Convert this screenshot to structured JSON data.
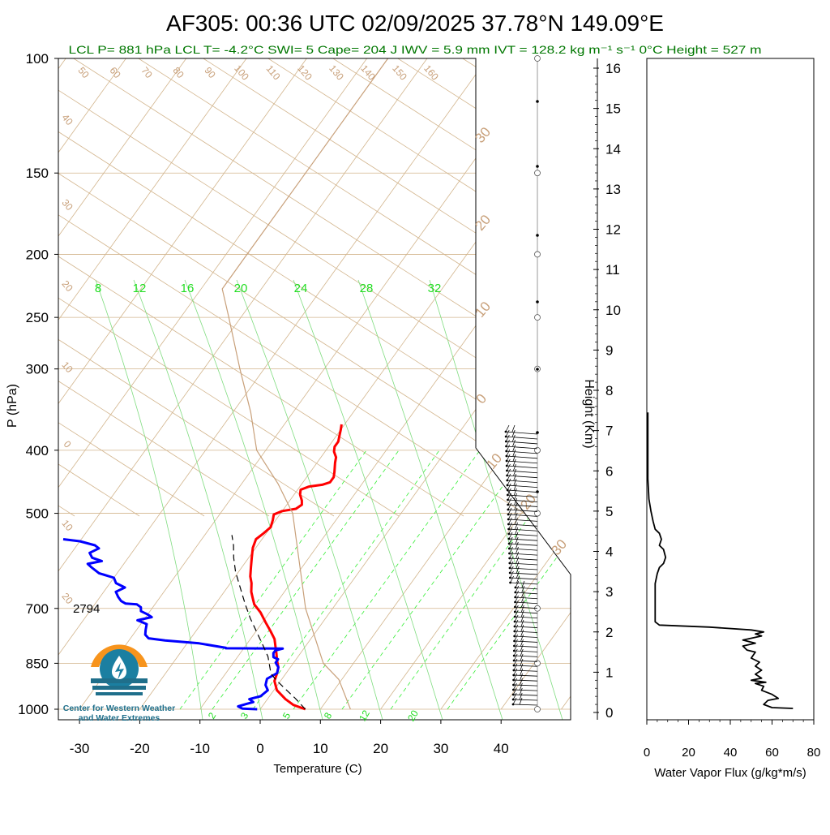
{
  "header": {
    "title": "AF305: 00:36 UTC 02/09/2025  37.78°N 149.09°E",
    "diagnostics": "LCL P= 881 hPa  LCL T= -4.2°C  SWI= 5  Cape= 204 J  IWV = 5.9 mm  IVT = 128.2 kg m⁻¹ s⁻¹  0°C Height = 527 m"
  },
  "logo": {
    "line1": "Center for Western Weather",
    "line2": "and Water Extremes",
    "colors": {
      "orange": "#f7941d",
      "teal": "#1b7fa1",
      "dark": "#1f6f8b"
    }
  },
  "colors": {
    "temperature": "#ff0000",
    "dewpoint": "#0000ff",
    "parcel": "#000000",
    "isotherm": "#d2b48c",
    "mixing_ratio": "#33ee33",
    "moist_adiabat": "#7fdc7f",
    "dry_adiabat": "#d2b48c",
    "std_atmosphere": "#c8a07a",
    "flux": "#000000",
    "green_text": "#007700"
  },
  "chart_data": [
    {
      "type": "line",
      "subtype": "skew-T log-P",
      "xlabel": "Temperature (C)",
      "ylabel": "P (hPa)",
      "xlim": [
        -35,
        50
      ],
      "ylim": [
        1000,
        100
      ],
      "yscale": "log",
      "x_ticks": [
        "-30",
        "-20",
        "-10",
        "0",
        "10",
        "20",
        "30",
        "40"
      ],
      "x_tick_values": [
        -30,
        -20,
        -10,
        0,
        10,
        20,
        30,
        40
      ],
      "y_ticks": [
        "100",
        "150",
        "200",
        "250",
        "300",
        "400",
        "500",
        "700",
        "850",
        "1000"
      ],
      "y_tick_values": [
        100,
        150,
        200,
        250,
        300,
        400,
        500,
        700,
        850,
        1000
      ],
      "right_axis": {
        "label": "Height (Km)",
        "ticks": [
          "0",
          "1",
          "2",
          "3",
          "4",
          "5",
          "6",
          "7",
          "8",
          "9",
          "10",
          "11",
          "12",
          "13",
          "14",
          "15",
          "16"
        ]
      },
      "mixing_ratio_labels": [
        "8",
        "12",
        "16",
        "20",
        "24",
        "28",
        "32"
      ],
      "mixing_ratio_bottom_labels": [
        "2",
        "3",
        "5",
        "8",
        "12",
        "20"
      ],
      "isotherm_labels": [
        "50",
        "60",
        "70",
        "80",
        "90",
        "100",
        "110",
        "120",
        "130",
        "140",
        "150",
        "160"
      ],
      "left_side_labels": [
        "40",
        "30",
        "20",
        "10",
        "0",
        "10",
        "20"
      ],
      "right_side_labels": [
        "30",
        "20",
        "10",
        "0",
        "10",
        "20",
        "30"
      ],
      "annotation": "2794",
      "series": [
        {
          "name": "",
          "role": "temperature",
          "points": [
            [
              7.5,
              1000
            ],
            [
              5,
              985
            ],
            [
              3,
              965
            ],
            [
              0.5,
              935
            ],
            [
              -1,
              905
            ],
            [
              -1.5,
              880
            ],
            [
              -2,
              862
            ],
            [
              -3,
              842
            ],
            [
              -4,
              820
            ],
            [
              -5,
              800
            ],
            [
              -6,
              780
            ],
            [
              -7.5,
              760
            ],
            [
              -9.5,
              735
            ],
            [
              -11.5,
              710
            ],
            [
              -13.5,
              690
            ],
            [
              -14.5,
              675
            ],
            [
              -15.5,
              660
            ],
            [
              -16.5,
              640
            ],
            [
              -17.5,
              625
            ],
            [
              -18.5,
              605
            ],
            [
              -19.5,
              585
            ],
            [
              -20.5,
              565
            ],
            [
              -21,
              548
            ],
            [
              -20.5,
              538
            ],
            [
              -20,
              525
            ],
            [
              -20.5,
              512
            ],
            [
              -21,
              502
            ],
            [
              -20,
              496
            ],
            [
              -18,
              492
            ],
            [
              -17.5,
              485
            ],
            [
              -18,
              478
            ],
            [
              -19,
              468
            ],
            [
              -19.5,
              460
            ],
            [
              -18.5,
              455
            ],
            [
              -16.5,
              452
            ],
            [
              -15.5,
              448
            ],
            [
              -15.5,
              440
            ],
            [
              -16,
              432
            ],
            [
              -16.5,
              425
            ],
            [
              -17,
              418
            ],
            [
              -17.5,
              410
            ],
            [
              -18.5,
              402
            ],
            [
              -19,
              395
            ],
            [
              -19,
              388
            ],
            [
              -19.5,
              380
            ],
            [
              -20,
              372
            ],
            [
              -20.5,
              365
            ]
          ]
        },
        {
          "name": "",
          "role": "dewpoint",
          "points": [
            [
              -0.5,
              1000
            ],
            [
              -3,
              998
            ],
            [
              -4,
              990
            ],
            [
              -3,
              982
            ],
            [
              -2,
              975
            ],
            [
              -3,
              965
            ],
            [
              -1.5,
              955
            ],
            [
              -1,
              935
            ],
            [
              -2,
              918
            ],
            [
              -2.5,
              898
            ],
            [
              -1.5,
              880
            ],
            [
              -2,
              862
            ],
            [
              -3,
              848
            ],
            [
              -3,
              838
            ],
            [
              -4,
              832
            ],
            [
              -4.5,
              820
            ],
            [
              -4.5,
              812
            ],
            [
              -3.5,
              807
            ],
            [
              -13,
              806
            ],
            [
              -13,
              805
            ],
            [
              -18,
              792
            ],
            [
              -24,
              784
            ],
            [
              -27,
              778
            ],
            [
              -28,
              768
            ],
            [
              -28.5,
              755
            ],
            [
              -29,
              740
            ],
            [
              -31,
              730
            ],
            [
              -29,
              722
            ],
            [
              -30,
              715
            ],
            [
              -31.5,
              707
            ],
            [
              -32,
              697
            ],
            [
              -33,
              690
            ],
            [
              -35,
              688
            ],
            [
              -36,
              682
            ],
            [
              -37,
              672
            ],
            [
              -38,
              660
            ],
            [
              -37,
              650
            ],
            [
              -39,
              640
            ],
            [
              -40,
              628
            ],
            [
              -43,
              618
            ],
            [
              -45,
              605
            ],
            [
              -46,
              598
            ],
            [
              -44,
              592
            ],
            [
              -46,
              585
            ],
            [
              -47,
              575
            ],
            [
              -46,
              566
            ],
            [
              -47,
              560
            ],
            [
              -50,
              552
            ],
            [
              -53,
              548
            ]
          ]
        },
        {
          "name": "",
          "role": "parcel",
          "points": [
            [
              7.5,
              1000
            ],
            [
              4.5,
              962
            ],
            [
              1.5,
              928
            ],
            [
              -1,
              900
            ],
            [
              -2.5,
              881
            ],
            [
              -3.5,
              860
            ],
            [
              -5,
              830
            ],
            [
              -7,
              800
            ],
            [
              -9.5,
              765
            ],
            [
              -12.5,
              725
            ],
            [
              -15,
              690
            ],
            [
              -17.5,
              655
            ],
            [
              -20.5,
              615
            ],
            [
              -22.5,
              585
            ],
            [
              -24,
              560
            ],
            [
              -25.5,
              540
            ]
          ]
        },
        {
          "name": "",
          "role": "standard atmosphere",
          "points": [
            [
              15,
              1000
            ],
            [
              9.5,
              900
            ],
            [
              5,
              850
            ],
            [
              -4.5,
              700
            ],
            [
              -18,
              500
            ],
            [
              -24,
              450
            ],
            [
              -31.5,
              400
            ],
            [
              -37,
              350
            ],
            [
              -44,
              300
            ],
            [
              -52,
              250
            ],
            [
              -56.5,
              226
            ],
            [
              -56.5,
              200
            ],
            [
              -56.5,
              150
            ],
            [
              -56.5,
              100
            ]
          ]
        }
      ]
    },
    {
      "type": "line",
      "xlabel": "Water Vapor Flux (g/kg*m/s)",
      "ylabel": "",
      "xlim": [
        0,
        80
      ],
      "ylim": [
        0,
        16.5
      ],
      "x_ticks": [
        "0",
        "20",
        "40",
        "60",
        "80"
      ],
      "x_tick_values": [
        0,
        20,
        40,
        60,
        80
      ],
      "series": [
        {
          "name": "",
          "points": [
            [
              70,
              0.1
            ],
            [
              60,
              0.12
            ],
            [
              56,
              0.2
            ],
            [
              58,
              0.3
            ],
            [
              63,
              0.35
            ],
            [
              60,
              0.45
            ],
            [
              55,
              0.55
            ],
            [
              56,
              0.65
            ],
            [
              52,
              0.72
            ],
            [
              57,
              0.75
            ],
            [
              50,
              0.8
            ],
            [
              55,
              0.85
            ],
            [
              52,
              0.95
            ],
            [
              55,
              1.05
            ],
            [
              52,
              1.15
            ],
            [
              54,
              1.25
            ],
            [
              50,
              1.35
            ],
            [
              52,
              1.5
            ],
            [
              48,
              1.55
            ],
            [
              46,
              1.65
            ],
            [
              52,
              1.72
            ],
            [
              46,
              1.8
            ],
            [
              55,
              1.9
            ],
            [
              52,
              1.95
            ],
            [
              56,
              2.0
            ],
            [
              50,
              2.05
            ],
            [
              30,
              2.12
            ],
            [
              6,
              2.17
            ],
            [
              4,
              2.25
            ],
            [
              4,
              2.5
            ],
            [
              4,
              2.75
            ],
            [
              4,
              3.0
            ],
            [
              4,
              3.2
            ],
            [
              5,
              3.45
            ],
            [
              6,
              3.6
            ],
            [
              8,
              3.7
            ],
            [
              9,
              3.85
            ],
            [
              8,
              4.05
            ],
            [
              6,
              4.15
            ],
            [
              7,
              4.3
            ],
            [
              6,
              4.45
            ],
            [
              4,
              4.55
            ],
            [
              3,
              4.75
            ],
            [
              2,
              5.0
            ],
            [
              1,
              5.3
            ],
            [
              0.5,
              5.8
            ],
            [
              0.5,
              6.5
            ],
            [
              0.5,
              7.2
            ],
            [
              0.5,
              7.45
            ]
          ]
        }
      ]
    }
  ]
}
